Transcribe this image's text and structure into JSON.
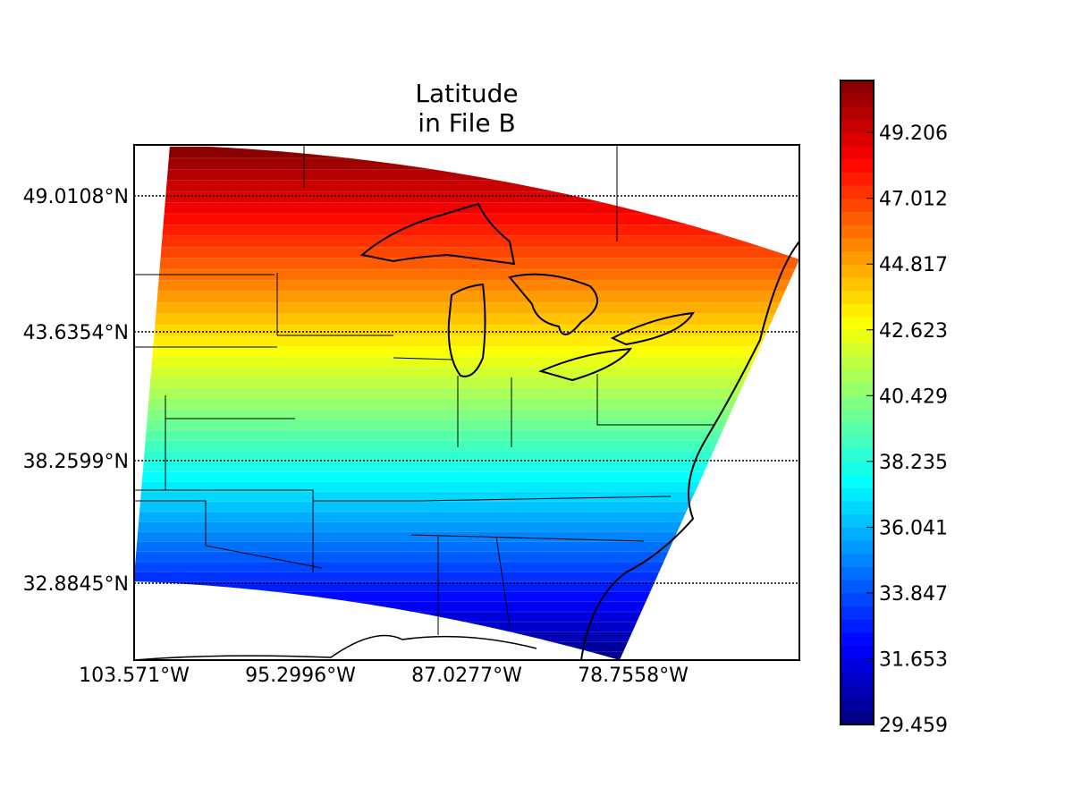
{
  "chart_data": {
    "type": "heatmap",
    "title": "Latitude\nin File B",
    "title_lines": [
      "Latitude",
      "in File B"
    ],
    "projection": "map of eastern/central United States with state boundaries and coastlines",
    "colormap": "jet",
    "parallels": [
      {
        "value": 49.0108,
        "label": "49.0108°N"
      },
      {
        "value": 43.6354,
        "label": "43.6354°N"
      },
      {
        "value": 38.2599,
        "label": "38.2599°N"
      },
      {
        "value": 32.8845,
        "label": "32.8845°N"
      }
    ],
    "meridians": [
      {
        "value": -103.571,
        "label": "103.571°W"
      },
      {
        "value": -95.2996,
        "label": "95.2996°W"
      },
      {
        "value": -87.0277,
        "label": "87.0277°W"
      },
      {
        "value": -78.7558,
        "label": "78.7558°W"
      }
    ],
    "grid": "dotted parallels",
    "colorbar": {
      "position": "right",
      "min": 29.459,
      "max": 50.94,
      "ticks": [
        29.459,
        31.653,
        33.847,
        36.041,
        38.235,
        40.429,
        42.623,
        44.817,
        47.012,
        49.206
      ],
      "tick_labels": [
        "29.459",
        "31.653",
        "33.847",
        "36.041",
        "38.235",
        "40.429",
        "42.623",
        "44.817",
        "47.012",
        "49.206"
      ]
    }
  }
}
